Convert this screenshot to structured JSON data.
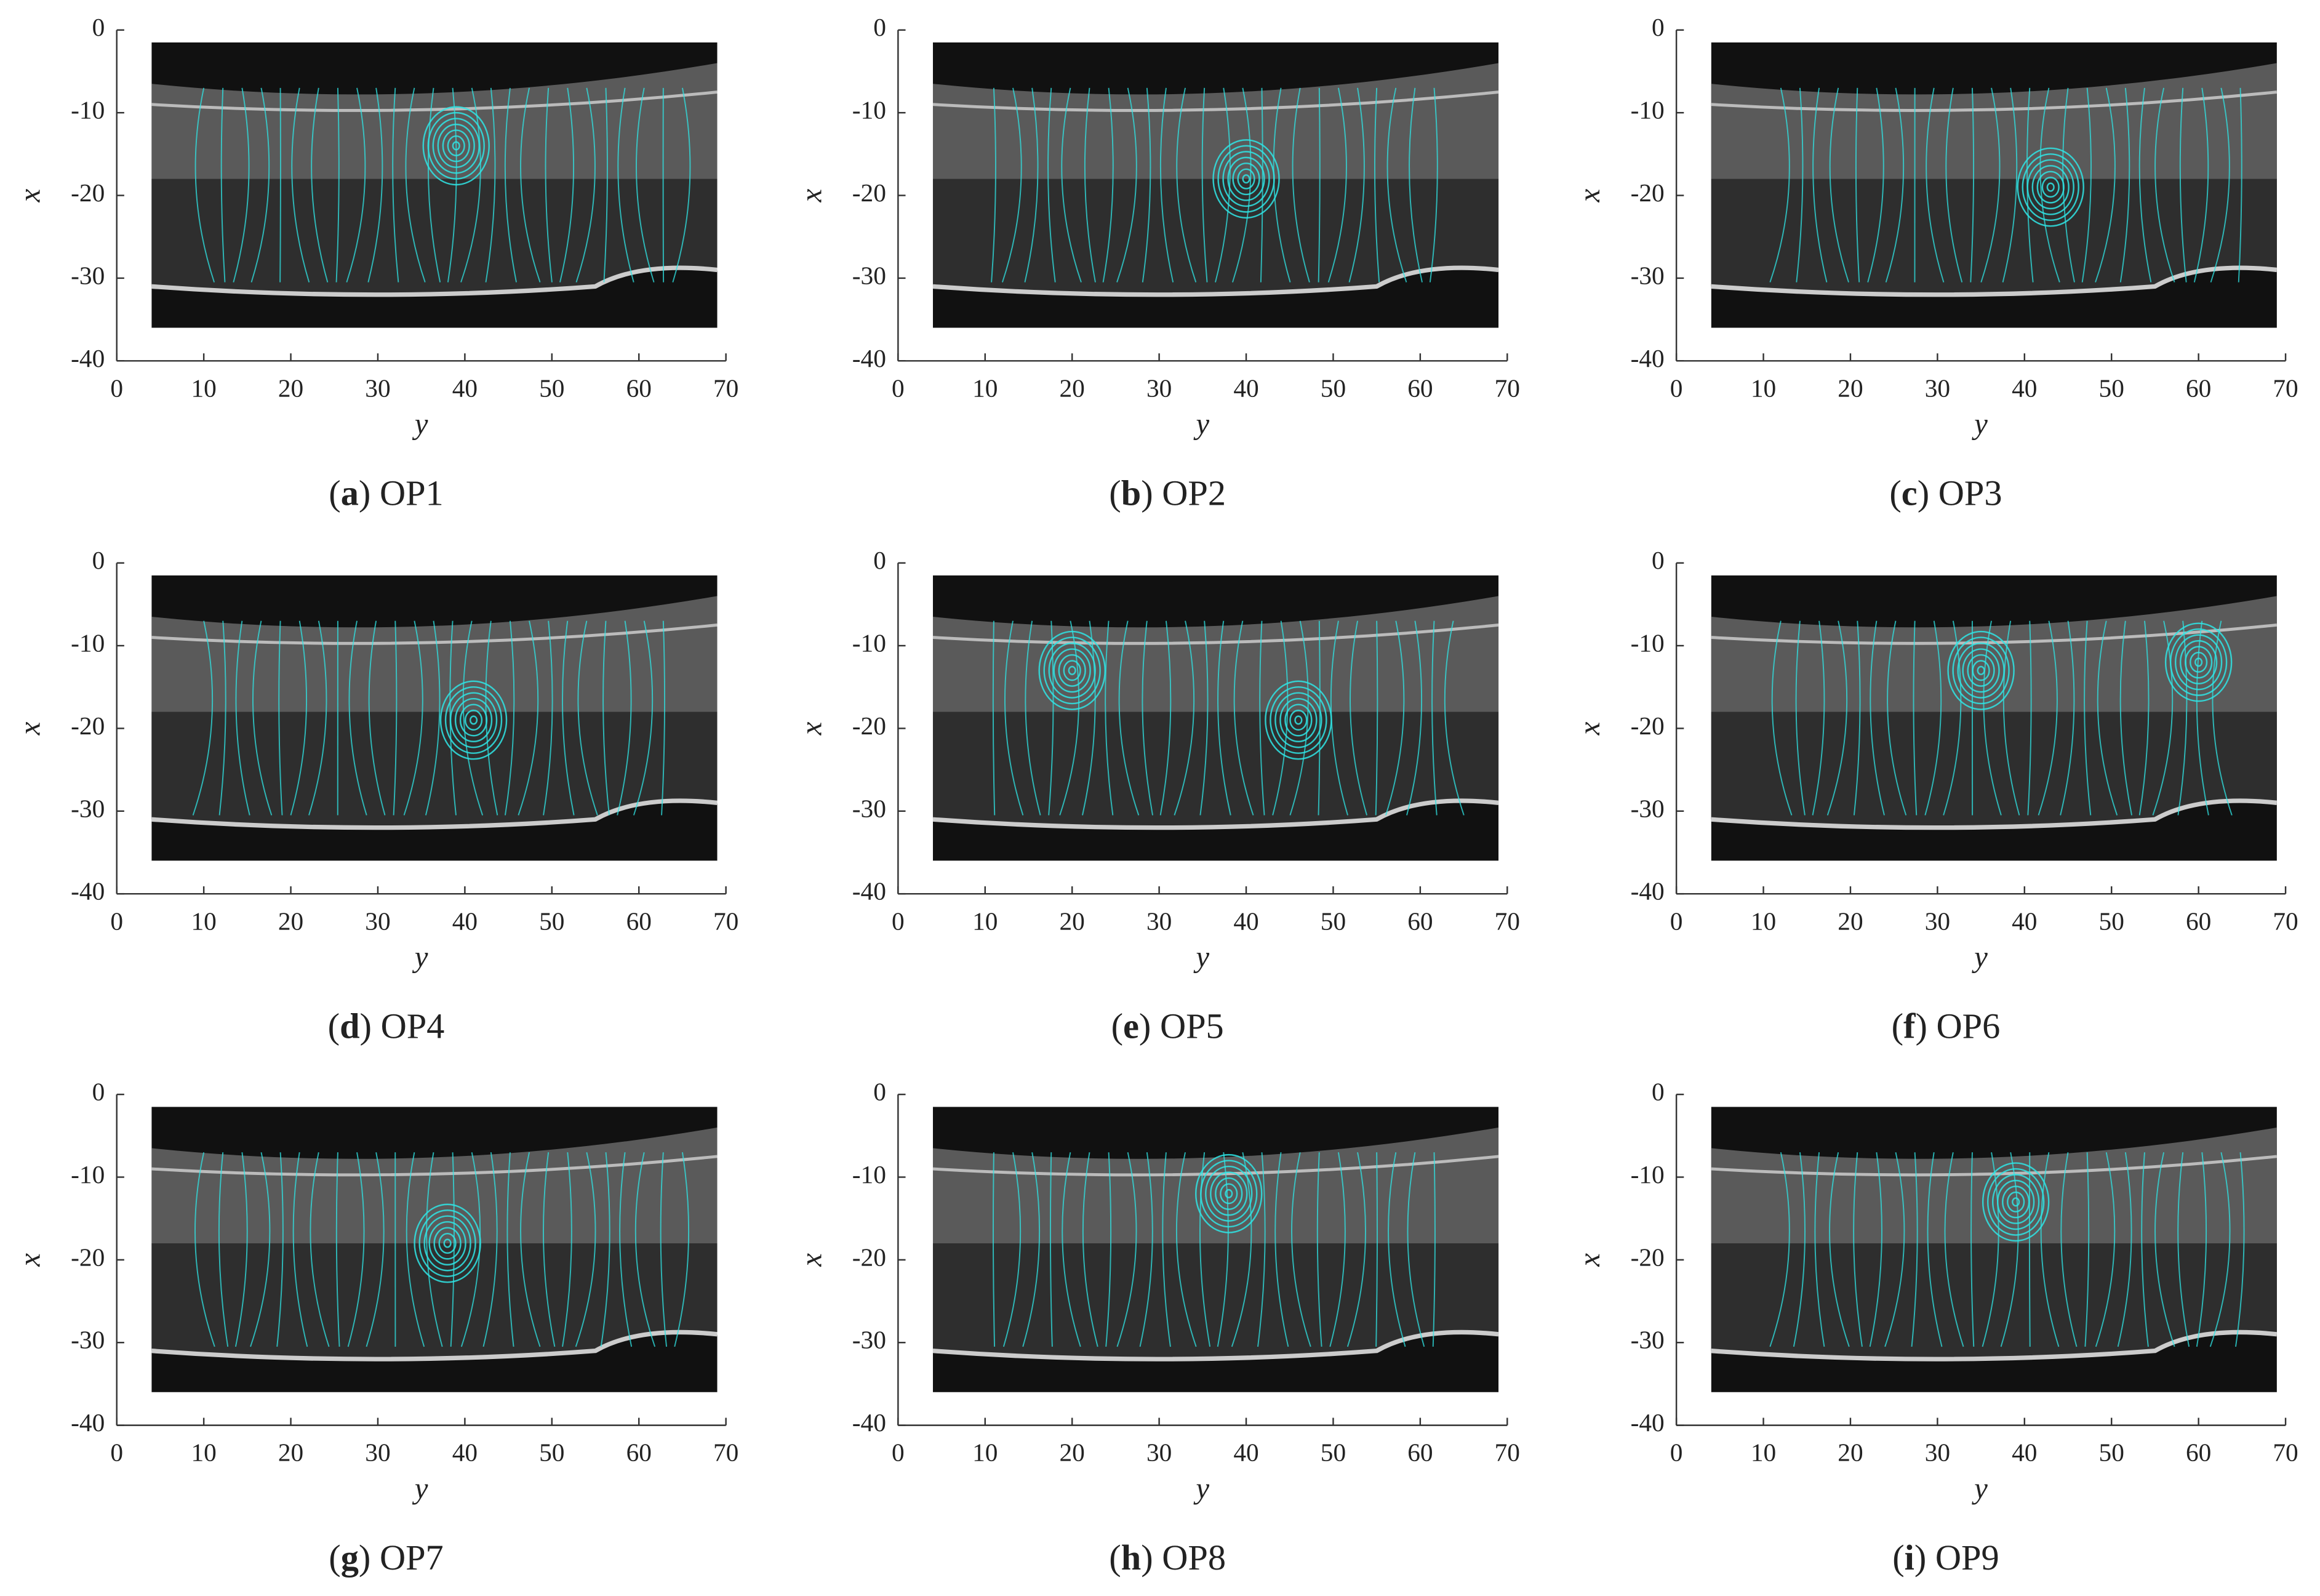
{
  "axes": {
    "xlim": [
      0,
      70
    ],
    "ylim": [
      -40,
      0
    ],
    "xticks": [
      0,
      10,
      20,
      30,
      40,
      50,
      60,
      70
    ],
    "yticks": [
      0,
      -10,
      -20,
      -30,
      -40
    ],
    "x_label": "y",
    "y_label": "x"
  },
  "caption_brackets": [
    "(",
    ")"
  ],
  "panels": [
    {
      "letter": "a",
      "label": "OP1"
    },
    {
      "letter": "b",
      "label": "OP2"
    },
    {
      "letter": "c",
      "label": "OP3"
    },
    {
      "letter": "d",
      "label": "OP4"
    },
    {
      "letter": "e",
      "label": "OP5"
    },
    {
      "letter": "f",
      "label": "OP6"
    },
    {
      "letter": "g",
      "label": "OP7"
    },
    {
      "letter": "h",
      "label": "OP8"
    },
    {
      "letter": "i",
      "label": "OP9"
    }
  ]
}
